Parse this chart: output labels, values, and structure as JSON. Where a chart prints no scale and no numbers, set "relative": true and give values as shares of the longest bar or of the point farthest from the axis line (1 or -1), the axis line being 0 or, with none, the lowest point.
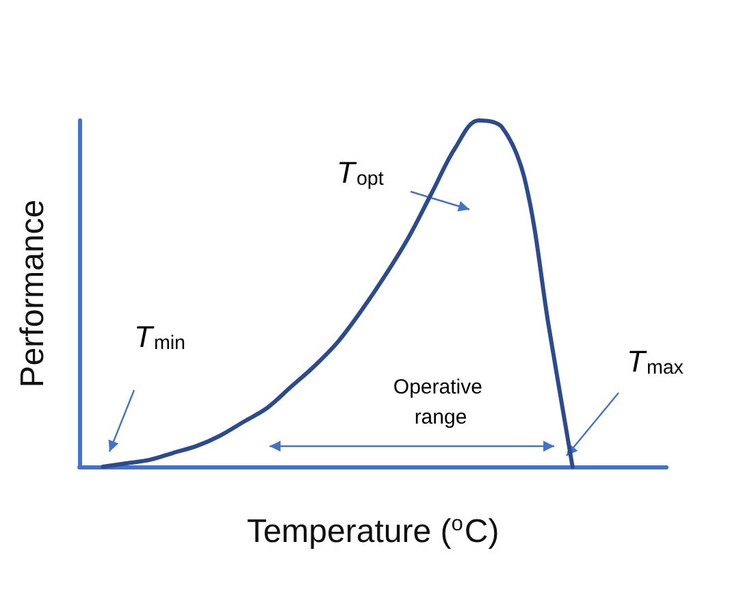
{
  "chart_data": {
    "type": "line",
    "relative": true,
    "xlabel": "Temperature ($^{o}$C)",
    "ylabel": "Performance",
    "categories": [
      null,
      null,
      null,
      null,
      null,
      null,
      null,
      null,
      null,
      null,
      null,
      null,
      null,
      null,
      null,
      null,
      null,
      null,
      null,
      null,
      null,
      null,
      null,
      null,
      null,
      null
    ],
    "series": [
      {
        "color": "#2b4b8c",
        "values": [
          null,
          0,
          0.01,
          0.02,
          0.04,
          0.06,
          0.09,
          0.13,
          0.17,
          0.23,
          0.29,
          0.36,
          0.45,
          0.55,
          0.66,
          0.79,
          0.92,
          1.0,
          0.98,
          0.82,
          0.4,
          0,
          null,
          null,
          null,
          null
        ]
      }
    ],
    "annotations": [
      "T$_{min}$",
      "T$_{opt}$",
      "T$_{max}$",
      "Operative range"
    ],
    "grid": false,
    "marker": "none",
    "line_style": "solid"
  }
}
